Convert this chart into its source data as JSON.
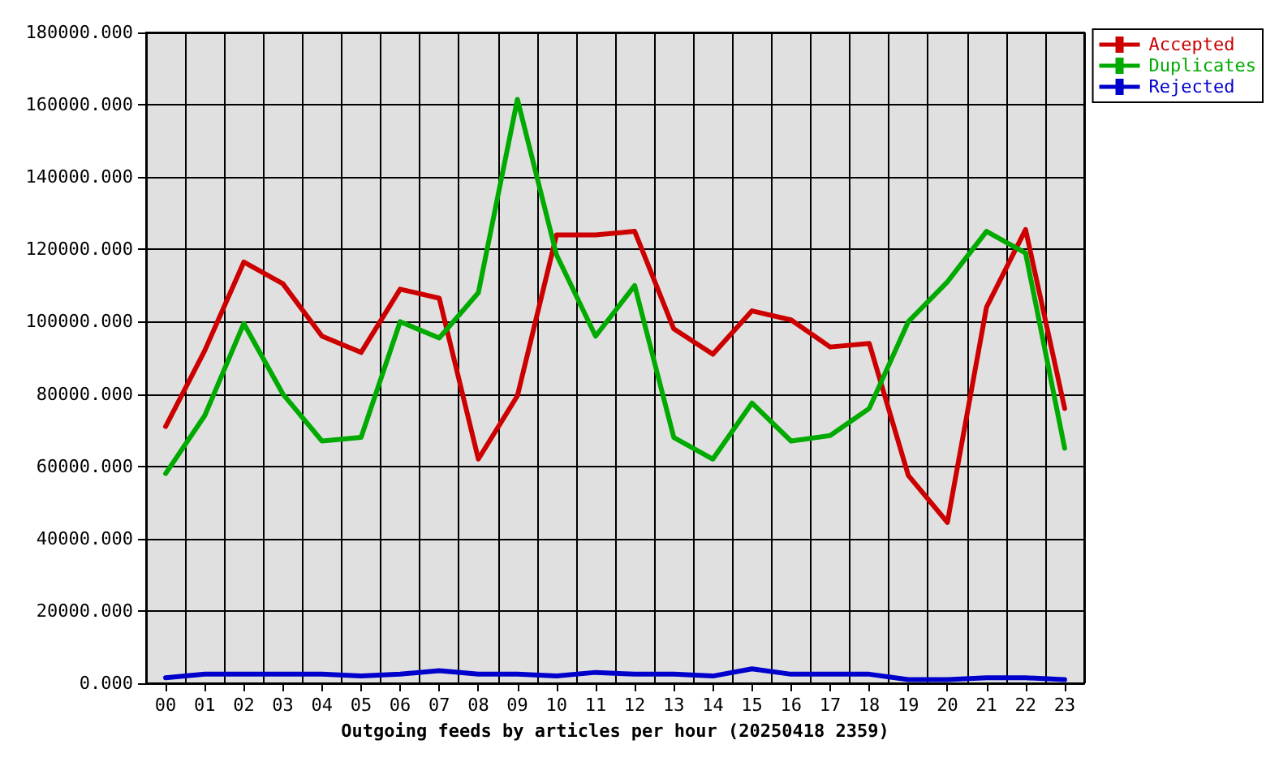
{
  "chart_data": {
    "type": "line",
    "xlabel": "Outgoing feeds by articles per hour (20250418 2359)",
    "categories": [
      "00",
      "01",
      "02",
      "03",
      "04",
      "05",
      "06",
      "07",
      "08",
      "09",
      "10",
      "11",
      "12",
      "13",
      "14",
      "15",
      "16",
      "17",
      "18",
      "19",
      "20",
      "21",
      "22",
      "23"
    ],
    "series": [
      {
        "name": "Accepted",
        "color": "#cc0000",
        "values": [
          71000,
          92000,
          116500,
          110500,
          96000,
          91500,
          109000,
          106500,
          62000,
          79500,
          124000,
          124000,
          125000,
          98000,
          91000,
          103000,
          100500,
          93000,
          94000,
          57500,
          44500,
          104000,
          125500,
          76000
        ]
      },
      {
        "name": "Duplicates",
        "color": "#00aa00",
        "values": [
          58000,
          74000,
          99500,
          80000,
          67000,
          68000,
          100000,
          95500,
          108000,
          161500,
          118500,
          96000,
          110000,
          68000,
          62000,
          77500,
          67000,
          68500,
          76000,
          100000,
          111000,
          125000,
          119000,
          65000
        ]
      },
      {
        "name": "Rejected",
        "color": "#0000cc",
        "values": [
          1500,
          2500,
          2500,
          2500,
          2500,
          2000,
          2500,
          3500,
          2500,
          2500,
          2000,
          3000,
          2500,
          2500,
          2000,
          4000,
          2500,
          2500,
          2500,
          1000,
          1000,
          1500,
          1500,
          1000
        ]
      }
    ],
    "ylim": [
      0,
      180000
    ],
    "yticks": [
      {
        "value": 0,
        "label": "0.000"
      },
      {
        "value": 20000,
        "label": "20000.000"
      },
      {
        "value": 40000,
        "label": "40000.000"
      },
      {
        "value": 60000,
        "label": "60000.000"
      },
      {
        "value": 80000,
        "label": "80000.000"
      },
      {
        "value": 100000,
        "label": "100000.000"
      },
      {
        "value": 120000,
        "label": "120000.000"
      },
      {
        "value": 140000,
        "label": "140000.000"
      },
      {
        "value": 160000,
        "label": "160000.000"
      },
      {
        "value": 180000,
        "label": "180000.000"
      }
    ],
    "grid": true,
    "legend": "top right",
    "marker": "none",
    "line_style": "solid"
  }
}
